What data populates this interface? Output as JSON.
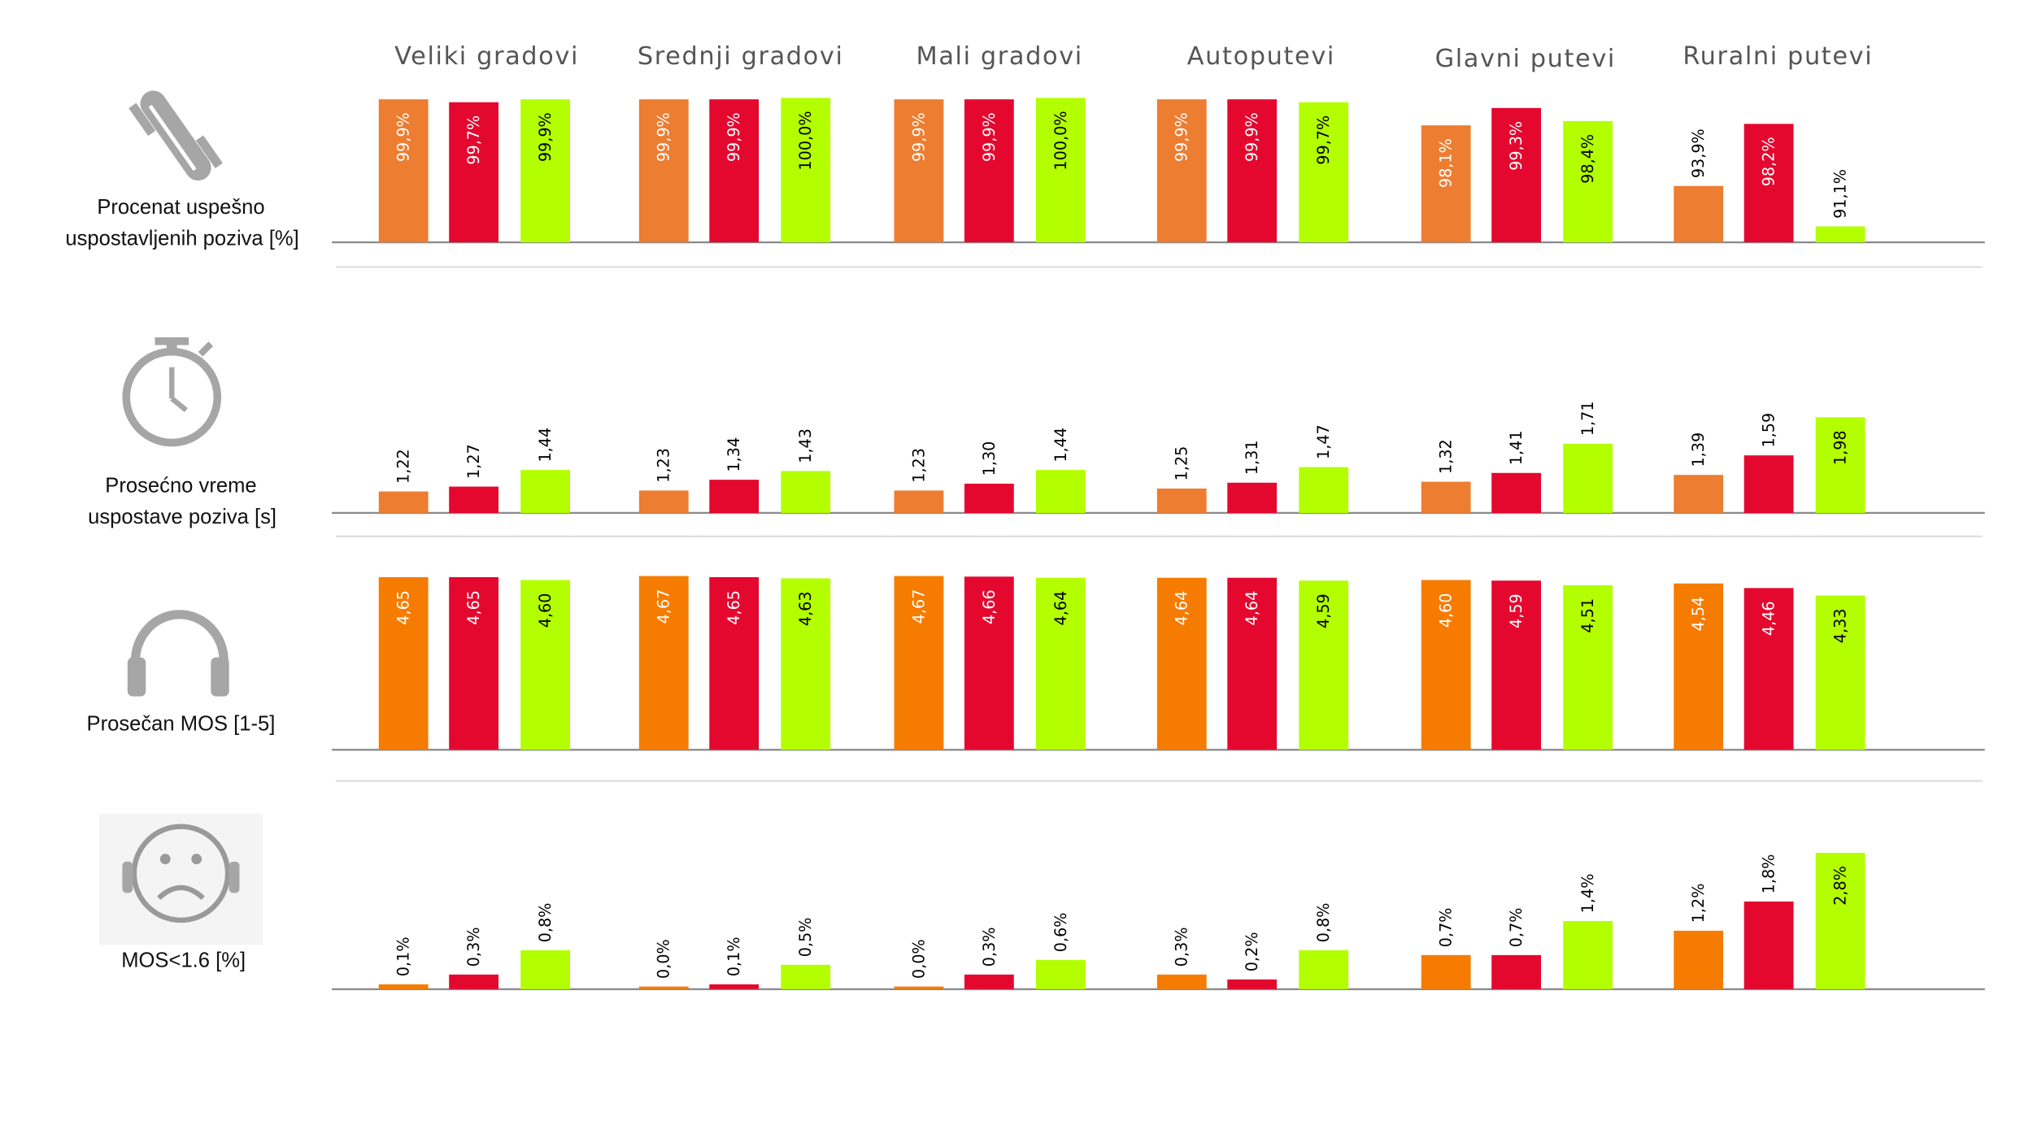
{
  "chart_data": {
    "type": "bar",
    "categories": [
      "Veliki gradovi",
      "Srednji gradovi",
      "Mali gradovi",
      "Autoputevi",
      "Glavni putevi",
      "Ruralni putevi"
    ],
    "series_colors": [
      "#ED7D31",
      "#E4082F",
      "#B3FF00"
    ],
    "panels": [
      {
        "label": [
          "Procenat uspešno",
          "uspostavljenih poziva  [%]"
        ],
        "icon": "phone-icon",
        "ylim": [
          90,
          100
        ],
        "series": [
          {
            "values": [
              99.9,
              99.9,
              99.9,
              99.9,
              98.1,
              93.9
            ],
            "labels": [
              "99,9%",
              "99,9%",
              "99,9%",
              "99,9%",
              "98,1%",
              "93,9%"
            ]
          },
          {
            "values": [
              99.7,
              99.9,
              99.9,
              99.9,
              99.3,
              98.2
            ],
            "labels": [
              "99,7%",
              "99,9%",
              "99,9%",
              "99,9%",
              "99,3%",
              "98,2%"
            ]
          },
          {
            "values": [
              99.9,
              100.0,
              100.0,
              99.7,
              98.4,
              91.1
            ],
            "labels": [
              "99,9%",
              "100,0%",
              "100,0%",
              "99,7%",
              "98,4%",
              "91,1%"
            ]
          }
        ]
      },
      {
        "label": [
          "Prosećno vreme",
          "uspostave poziva [s]"
        ],
        "icon": "stopwatch-icon",
        "ylim": [
          1,
          2.4
        ],
        "series": [
          {
            "values": [
              1.22,
              1.23,
              1.23,
              1.25,
              1.32,
              1.39
            ],
            "labels": [
              "1,22",
              "1,23",
              "1,23",
              "1,25",
              "1,32",
              "1,39"
            ]
          },
          {
            "values": [
              1.27,
              1.34,
              1.3,
              1.31,
              1.41,
              1.59
            ],
            "labels": [
              "1,27",
              "1,34",
              "1,30",
              "1,31",
              "1,41",
              "1,59"
            ]
          },
          {
            "values": [
              1.44,
              1.43,
              1.44,
              1.47,
              1.71,
              1.98
            ],
            "labels": [
              "1,44",
              "1,43",
              "1,44",
              "1,47",
              "1,71",
              "1,98"
            ]
          }
        ]
      },
      {
        "label": [
          "Prosečan  MOS [1-5]"
        ],
        "icon": "headphones-icon",
        "ylim": [
          1.63,
          5
        ],
        "series_colors_override": [
          "#F57C00",
          "#E4082F",
          "#B3FF00"
        ],
        "series": [
          {
            "values": [
              4.65,
              4.67,
              4.67,
              4.64,
              4.6,
              4.54
            ],
            "labels": [
              "4,65",
              "4,67",
              "4,67",
              "4,64",
              "4,60",
              "4,54"
            ]
          },
          {
            "values": [
              4.65,
              4.65,
              4.66,
              4.64,
              4.59,
              4.46
            ],
            "labels": [
              "4,65",
              "4,65",
              "4,66",
              "4,64",
              "4,59",
              "4,46"
            ]
          },
          {
            "values": [
              4.6,
              4.63,
              4.64,
              4.59,
              4.51,
              4.33
            ],
            "labels": [
              "4,60",
              "4,63",
              "4,64",
              "4,59",
              "4,51",
              "4,33"
            ]
          }
        ]
      },
      {
        "label": [
          "MOS<1.6 [%]"
        ],
        "icon": "sad-face-headphones-icon",
        "ylim": [
          0,
          3.5
        ],
        "series_colors_override": [
          "#F57C00",
          "#E4082F",
          "#B3FF00"
        ],
        "series": [
          {
            "values": [
              0.1,
              0.0,
              0.0,
              0.3,
              0.7,
              1.2
            ],
            "labels": [
              "0,1%",
              "0,0%",
              "0,0%",
              "0,3%",
              "0,7%",
              "1,2%"
            ]
          },
          {
            "values": [
              0.3,
              0.1,
              0.3,
              0.2,
              0.7,
              1.8
            ],
            "labels": [
              "0,3%",
              "0,1%",
              "0,3%",
              "0,2%",
              "0,7%",
              "1,8%"
            ]
          },
          {
            "values": [
              0.8,
              0.5,
              0.6,
              0.8,
              1.4,
              2.8
            ],
            "labels": [
              "0,8%",
              "0,5%",
              "0,6%",
              "0,8%",
              "1,4%",
              "2,8%"
            ]
          }
        ]
      }
    ],
    "legend": "none",
    "grid": false
  }
}
